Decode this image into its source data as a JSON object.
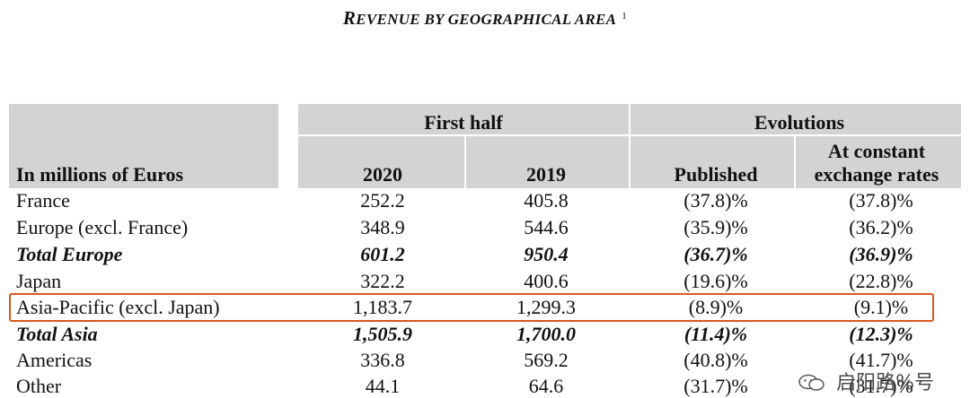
{
  "title": {
    "first": "R",
    "main": "EVENUE BY GEOGRAPHICAL AREA",
    "superscript": "1"
  },
  "table": {
    "group_headers": {
      "first_half": "First half",
      "evolutions": "Evolutions"
    },
    "row_label_header": "In millions of Euros",
    "col_headers": {
      "y2020": "2020",
      "y2019": "2019",
      "published": "Published",
      "constant_line1": "At constant",
      "constant_line2": "exchange rates"
    },
    "rows": [
      {
        "label": "France",
        "y2020": "252.2",
        "y2019": "405.8",
        "published": "(37.8)%",
        "constant": "(37.8)%"
      },
      {
        "label": "Europe (excl. France)",
        "y2020": "348.9",
        "y2019": "544.6",
        "published": "(35.9)%",
        "constant": "(36.2)%"
      },
      {
        "label": "Total Europe",
        "y2020": "601.2",
        "y2019": "950.4",
        "published": "(36.7)%",
        "constant": "(36.9)%"
      },
      {
        "label": "Japan",
        "y2020": "322.2",
        "y2019": "400.6",
        "published": "(19.6)%",
        "constant": "(22.8)%"
      },
      {
        "label": "Asia-Pacific (excl. Japan)",
        "y2020": "1,183.7",
        "y2019": "1,299.3",
        "published": "(8.9)%",
        "constant": "(9.1)%"
      },
      {
        "label": "Total Asia",
        "y2020": "1,505.9",
        "y2019": "1,700.0",
        "published": "(11.4)%",
        "constant": "(12.3)%"
      },
      {
        "label": "Americas",
        "y2020": "336.8",
        "y2019": "569.2",
        "published": "(40.8)%",
        "constant": "(41.7)%"
      },
      {
        "label": "Other",
        "y2020": "44.1",
        "y2019": "64.6",
        "published": "(31.7)%",
        "constant": "(31.7)%"
      }
    ]
  },
  "highlight_color": "#d8581f",
  "watermark": {
    "text": "启阳路%号",
    "icon": "wechat-icon"
  }
}
